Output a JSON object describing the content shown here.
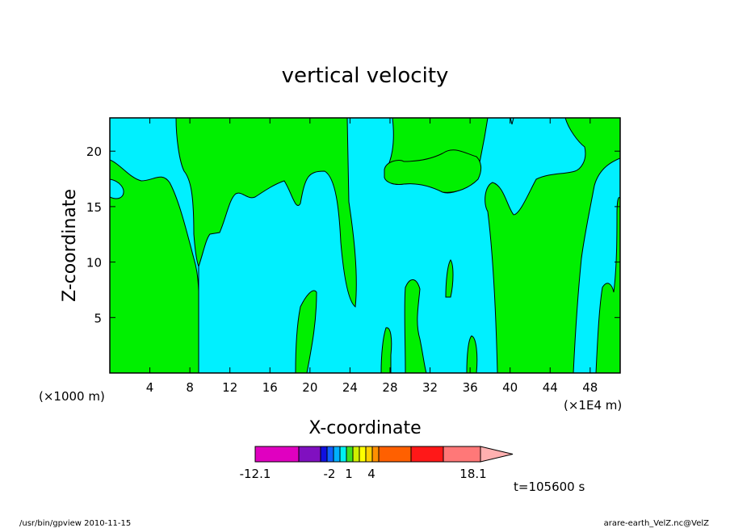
{
  "chart_data": {
    "type": "heatmap",
    "title": "vertical velocity",
    "xlabel": "X-coordinate",
    "ylabel": "Z-coordinate",
    "x_unit_left": "(×1000 m)",
    "x_unit_right": "(×1E4 m)",
    "xlim": [
      0,
      51
    ],
    "ylim": [
      0,
      23
    ],
    "x_ticks": [
      4,
      8,
      12,
      16,
      20,
      24,
      28,
      32,
      36,
      40,
      44,
      48
    ],
    "y_ticks": [
      5,
      10,
      15,
      20
    ],
    "grid": false,
    "colorbar": {
      "colors": [
        "#e000c0",
        "#8010c0",
        "#1010e0",
        "#1060ff",
        "#00b0ff",
        "#00f0f0",
        "#40e020",
        "#d0f000",
        "#ffff00",
        "#ffd000",
        "#ff9000",
        "#ff6000",
        "#ff1818",
        "#ff7878",
        "#ffb0b0"
      ],
      "tick_labels": [
        "-12.1",
        "-2",
        "1",
        "4",
        "18.1"
      ],
      "tick_values": [
        -12.1,
        -2,
        1,
        4,
        18.1
      ]
    },
    "fill_colors": {
      "negative": "#00f0ff",
      "positive": "#00f000"
    },
    "regions": [
      {
        "name": "left-positive",
        "sign": "positive",
        "x": [
          0,
          8.8
        ],
        "z": [
          0,
          19.3
        ]
      },
      {
        "name": "left-upper-cyan",
        "sign": "negative",
        "x": [
          0,
          1.5
        ],
        "z": [
          15.9,
          17.2
        ]
      },
      {
        "name": "central-downdraft",
        "sign": "negative",
        "x": [
          8.8,
          38.5
        ],
        "z": [
          0,
          16.5
        ]
      },
      {
        "name": "right-positive",
        "sign": "positive",
        "x": [
          38.5,
          47
        ],
        "z": [
          0,
          17.1
        ]
      },
      {
        "name": "right-downdraft",
        "sign": "negative",
        "x": [
          47,
          51
        ],
        "z": [
          0,
          19
        ]
      }
    ]
  },
  "annotations": {
    "time": "t=105600 s",
    "footer_left": "/usr/bin/gpview   2010-11-15",
    "footer_right": "arare-earth_VelZ.nc@VelZ"
  }
}
